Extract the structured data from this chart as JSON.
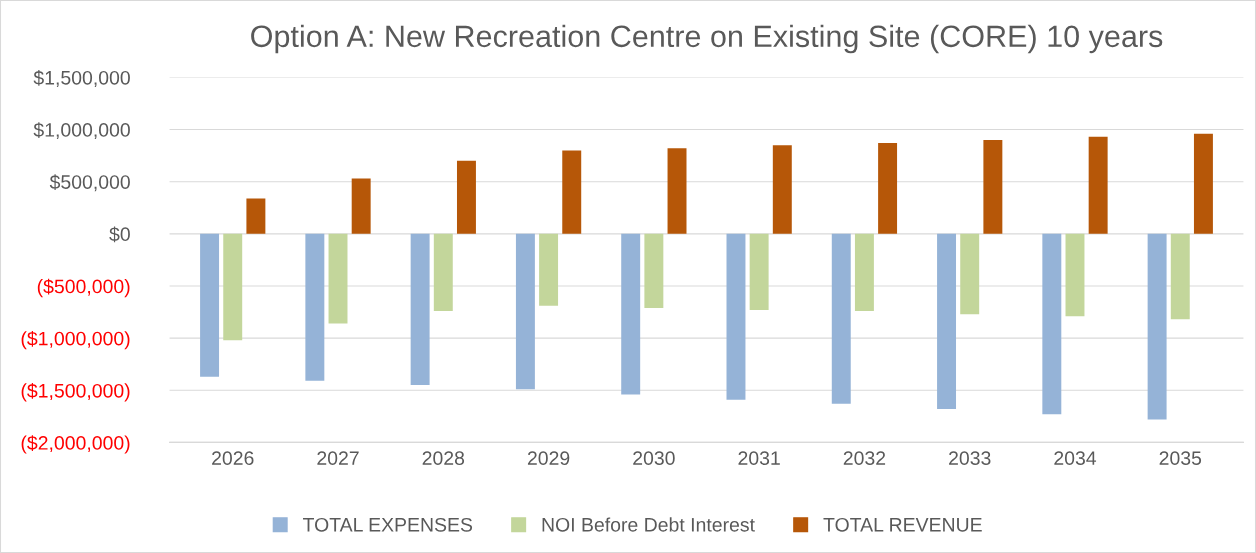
{
  "chart_data": {
    "type": "bar",
    "title": "Option A: New Recreation Centre on Existing Site (CORE) 10 years",
    "categories": [
      "2026",
      "2027",
      "2028",
      "2029",
      "2030",
      "2031",
      "2032",
      "2033",
      "2034",
      "2035"
    ],
    "series": [
      {
        "name": "TOTAL EXPENSES",
        "color": "#95b3d7",
        "values": [
          -1370000,
          -1410000,
          -1450000,
          -1490000,
          -1540000,
          -1590000,
          -1630000,
          -1680000,
          -1730000,
          -1780000
        ]
      },
      {
        "name": "NOI Before Debt Interest",
        "color": "#c3d69b",
        "values": [
          -1020000,
          -860000,
          -740000,
          -690000,
          -710000,
          -730000,
          -740000,
          -770000,
          -790000,
          -820000
        ]
      },
      {
        "name": "TOTAL REVENUE",
        "color": "#b65708",
        "values": [
          340000,
          530000,
          700000,
          800000,
          820000,
          850000,
          870000,
          900000,
          930000,
          960000
        ]
      }
    ],
    "ylim": [
      -2000000,
      1500000
    ],
    "yticks": [
      {
        "value": -2000000,
        "label": "($2,000,000)"
      },
      {
        "value": -1500000,
        "label": "($1,500,000)"
      },
      {
        "value": -1000000,
        "label": "($1,000,000)"
      },
      {
        "value": -500000,
        "label": "($500,000)"
      },
      {
        "value": 0,
        "label": "$0"
      },
      {
        "value": 500000,
        "label": "$500,000"
      },
      {
        "value": 1000000,
        "label": "$1,000,000"
      },
      {
        "value": 1500000,
        "label": "$1,500,000"
      }
    ],
    "grid": "y",
    "legend": "bottom"
  }
}
